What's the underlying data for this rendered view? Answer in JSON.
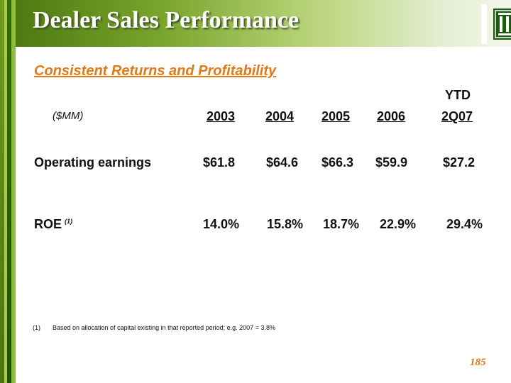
{
  "header": {
    "title": "Dealer Sales Performance",
    "logo_icon": "bank-logo-icon"
  },
  "subtitle": "Consistent Returns and Profitability",
  "table": {
    "units": "($MM)",
    "ytd_label": "YTD",
    "columns": [
      "2003",
      "2004",
      "2005",
      "2006",
      "2Q07"
    ],
    "rows": [
      {
        "label": "Operating earnings",
        "values": [
          "$61.8",
          "$64.6",
          "$66.3",
          "$59.9",
          "$27.2"
        ]
      },
      {
        "label": "ROE",
        "footnote_ref": "(1)",
        "values": [
          "14.0%",
          "15.8%",
          "18.7%",
          "22.9%",
          "29.4%"
        ]
      }
    ]
  },
  "footnote": {
    "number": "(1)",
    "text": "Based on allocation of capital existing in that reported period; e.g. 2007 = 3.8%"
  },
  "page_number": "185",
  "colors": {
    "accent_orange": "#e07a18",
    "brand_green": "#4d7a12"
  }
}
